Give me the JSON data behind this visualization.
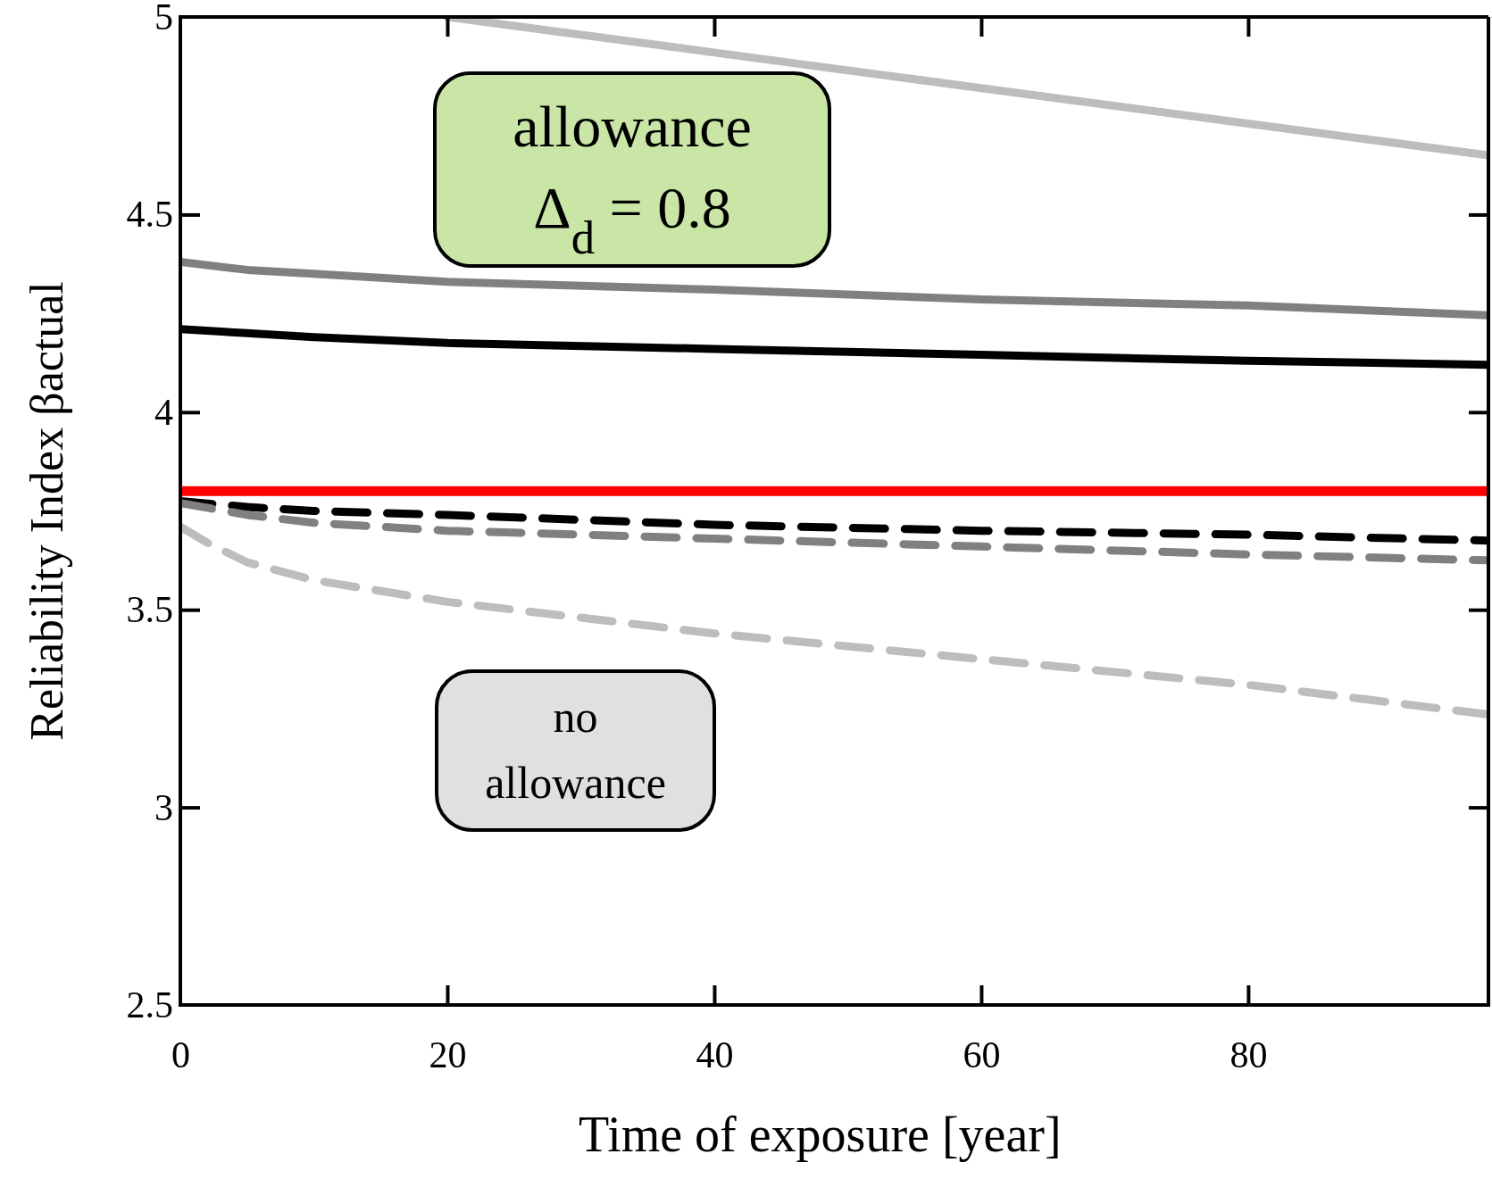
{
  "chart_data": {
    "type": "line",
    "xlabel": "Time of exposure [year]",
    "ylabel": "Reliability Index βactual",
    "xlim": [
      0,
      98
    ],
    "xticks": [
      0,
      20,
      40,
      60,
      80
    ],
    "ylim": [
      2.5,
      5
    ],
    "yticks": [
      2.5,
      3,
      3.5,
      4,
      4.5,
      5
    ],
    "series": [
      {
        "color": "#bdbdbd",
        "line_style": "solid",
        "x": [
          20,
          40,
          60,
          80,
          98
        ],
        "values": [
          5.0,
          4.91,
          4.82,
          4.73,
          4.65
        ]
      },
      {
        "color": "#808080",
        "line_style": "solid",
        "x": [
          0,
          5,
          10,
          20,
          40,
          60,
          80,
          98
        ],
        "values": [
          4.38,
          4.36,
          4.35,
          4.33,
          4.31,
          4.285,
          4.27,
          4.245
        ]
      },
      {
        "color": "#000000",
        "line_style": "solid",
        "x": [
          0,
          5,
          10,
          20,
          40,
          60,
          80,
          98
        ],
        "values": [
          4.21,
          4.2,
          4.19,
          4.175,
          4.16,
          4.145,
          4.13,
          4.12
        ]
      },
      {
        "color": "#000000",
        "line_style": "dashed",
        "x": [
          0,
          5,
          10,
          20,
          40,
          60,
          80,
          98
        ],
        "values": [
          3.775,
          3.76,
          3.75,
          3.74,
          3.715,
          3.7,
          3.69,
          3.675
        ]
      },
      {
        "color": "#808080",
        "line_style": "dashed",
        "x": [
          0,
          5,
          10,
          20,
          40,
          60,
          80,
          98
        ],
        "values": [
          3.77,
          3.74,
          3.72,
          3.7,
          3.68,
          3.66,
          3.64,
          3.625
        ]
      },
      {
        "color": "#bdbdbd",
        "line_style": "dashed",
        "x": [
          0,
          2,
          5,
          10,
          20,
          40,
          60,
          80,
          98
        ],
        "values": [
          3.71,
          3.67,
          3.62,
          3.575,
          3.52,
          3.44,
          3.375,
          3.31,
          3.235
        ]
      }
    ],
    "ref_lines": [
      {
        "axis": "y",
        "value": 3.8,
        "color": "#ff0000",
        "line_style": "solid"
      }
    ],
    "annotations": [
      "allowance Δ$_{d}$ = 0.8",
      "no allowance"
    ]
  }
}
